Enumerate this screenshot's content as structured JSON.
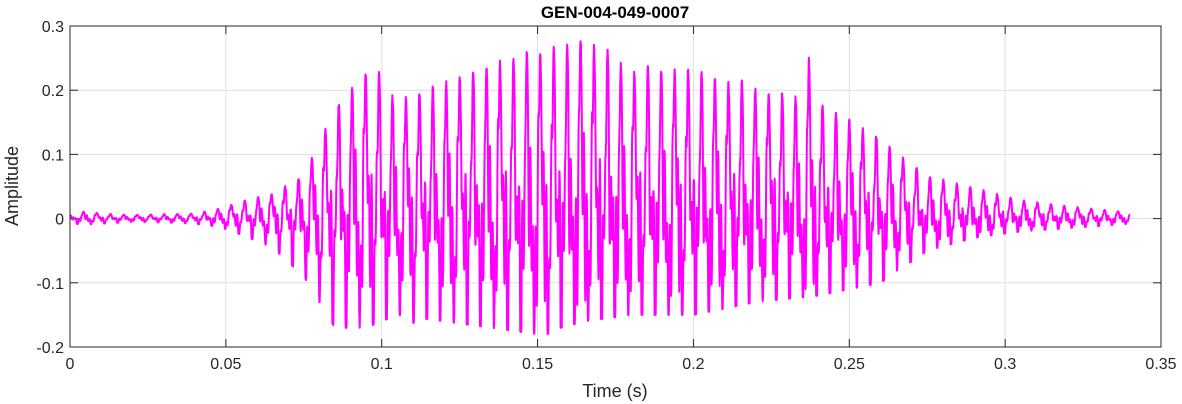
{
  "chart_data": {
    "type": "line",
    "title": "GEN-004-049-0007",
    "xlabel": "Time (s)",
    "ylabel": "Amplitude",
    "xlim": [
      0,
      0.35
    ],
    "ylim": [
      -0.2,
      0.3
    ],
    "xticks": [
      0,
      0.05,
      0.1,
      0.15,
      0.2,
      0.25,
      0.3,
      0.35
    ],
    "xtick_labels": [
      "0",
      "0.05",
      "0.1",
      "0.15",
      "0.2",
      "0.25",
      "0.3",
      "0.35"
    ],
    "yticks": [
      -0.2,
      -0.1,
      0,
      0.1,
      0.2,
      0.3
    ],
    "ytick_labels": [
      "-0.2",
      "-0.1",
      "0",
      "0.1",
      "0.2",
      "0.3"
    ],
    "grid": true,
    "line_color": "#ff00ff",
    "series": [
      {
        "x_start": 0,
        "x_end": 0.34,
        "envelope": {
          "t": [
            0,
            0.005,
            0.01,
            0.02,
            0.03,
            0.04,
            0.047,
            0.055,
            0.065,
            0.075,
            0.085,
            0.095,
            0.105,
            0.12,
            0.135,
            0.15,
            0.165,
            0.18,
            0.2,
            0.22,
            0.24,
            0.26,
            0.275,
            0.29,
            0.305,
            0.32,
            0.34
          ],
          "pos": [
            0.005,
            0.012,
            0.008,
            0.006,
            0.007,
            0.008,
            0.015,
            0.028,
            0.04,
            0.07,
            0.18,
            0.24,
            0.19,
            0.22,
            0.25,
            0.27,
            0.29,
            0.24,
            0.24,
            0.21,
            0.19,
            0.13,
            0.07,
            0.05,
            0.03,
            0.02,
            0.01
          ],
          "neg": [
            -0.007,
            -0.01,
            -0.008,
            -0.005,
            -0.006,
            -0.008,
            -0.012,
            -0.025,
            -0.045,
            -0.09,
            -0.17,
            -0.17,
            -0.15,
            -0.16,
            -0.17,
            -0.18,
            -0.16,
            -0.15,
            -0.15,
            -0.13,
            -0.12,
            -0.1,
            -0.05,
            -0.03,
            -0.02,
            -0.015,
            -0.008
          ]
        },
        "peaks": [
          {
            "t": 0.093,
            "y": 0.237
          },
          {
            "t": 0.098,
            "y": 0.257
          },
          {
            "t": 0.138,
            "y": 0.235
          },
          {
            "t": 0.148,
            "y": 0.278
          },
          {
            "t": 0.156,
            "y": 0.275
          },
          {
            "t": 0.163,
            "y": 0.298
          },
          {
            "t": 0.174,
            "y": 0.285
          },
          {
            "t": 0.184,
            "y": 0.258
          },
          {
            "t": 0.215,
            "y": 0.227
          },
          {
            "t": 0.237,
            "y": 0.262
          },
          {
            "t": 0.153,
            "y": -0.18
          },
          {
            "t": 0.147,
            "y": -0.175
          },
          {
            "t": 0.094,
            "y": -0.17
          },
          {
            "t": 0.109,
            "y": -0.17
          }
        ],
        "pitch_hz": 232
      }
    ]
  }
}
